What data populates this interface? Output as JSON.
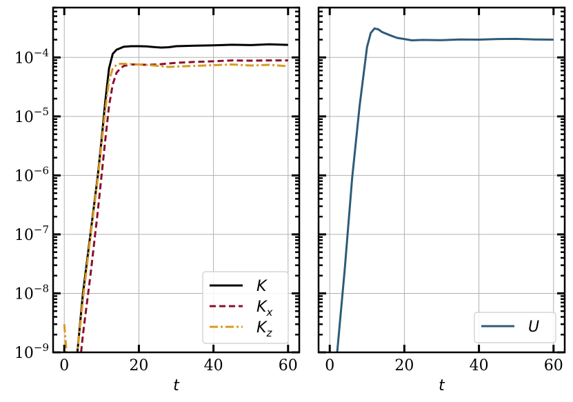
{
  "chart_data": [
    {
      "type": "line",
      "title": "",
      "xlabel": "t",
      "ylabel": "",
      "xlim": [
        -3,
        63
      ],
      "ylim": [
        1e-09,
        0.0007
      ],
      "yscale": "log",
      "grid": true,
      "legend_position": "bottom-right",
      "x_ticks": [
        0,
        20,
        40,
        60
      ],
      "x_tick_labels": [
        "0",
        "20",
        "40",
        "60"
      ],
      "y_ticks": [
        1e-09,
        1e-08,
        1e-07,
        1e-06,
        1e-05,
        0.0001
      ],
      "y_tick_labels": [
        {
          "base": "10",
          "exp": "−9"
        },
        {
          "base": "10",
          "exp": "−8"
        },
        {
          "base": "10",
          "exp": "−7"
        },
        {
          "base": "10",
          "exp": "−6"
        },
        {
          "base": "10",
          "exp": "−5"
        },
        {
          "base": "10",
          "exp": "−4"
        }
      ],
      "series": [
        {
          "name": "K",
          "name_sub": "",
          "color": "#000000",
          "dash": "solid",
          "x": [
            3.5,
            5,
            7,
            9,
            10,
            11,
            12,
            13,
            14,
            16,
            18,
            20,
            22,
            24,
            26,
            28,
            30,
            35,
            40,
            45,
            50,
            55,
            60
          ],
          "y": [
            1e-09,
            1e-08,
            1e-07,
            1e-06,
            4e-06,
            1.8e-05,
            6.5e-05,
            0.000115,
            0.000135,
            0.000152,
            0.000155,
            0.000155,
            0.000154,
            0.00015,
            0.000147,
            0.000149,
            0.000155,
            0.000158,
            0.00016,
            0.000164,
            0.000162,
            0.000167,
            0.000163
          ]
        },
        {
          "name": "K",
          "name_sub": "x",
          "color": "#8b0d2d",
          "dash": "dash",
          "x": [
            4.5,
            5,
            7,
            9,
            10,
            11,
            12,
            13,
            14,
            15,
            16,
            18,
            20,
            22,
            25,
            30,
            35,
            40,
            45,
            50,
            55,
            60
          ],
          "y": [
            1e-09,
            2e-09,
            2e-08,
            2.5e-07,
            1e-06,
            4e-06,
            1.5e-05,
            3.5e-05,
            5.5e-05,
            6.5e-05,
            7.2e-05,
            7.6e-05,
            7.6e-05,
            7.5e-05,
            7.6e-05,
            8.1e-05,
            8.4e-05,
            8.6e-05,
            8.9e-05,
            8.8e-05,
            8.9e-05,
            8.9e-05
          ]
        },
        {
          "name": "K",
          "name_sub": "z",
          "color": "#d99a1c",
          "dash": "dashdot",
          "x": [
            0,
            0.6,
            3.5,
            5,
            7,
            9,
            10,
            11,
            12,
            13,
            14,
            15,
            16,
            18,
            20,
            22,
            25,
            28,
            30,
            35,
            40,
            45,
            50,
            55,
            60
          ],
          "y": [
            3e-09,
            1e-09,
            1e-09,
            8e-09,
            9e-08,
            9e-07,
            3.5e-06,
            1.3e-05,
            4e-05,
            6.5e-05,
            7.5e-05,
            7.8e-05,
            7.8e-05,
            7.7e-05,
            7.6e-05,
            7.5e-05,
            7.2e-05,
            6.9e-05,
            7e-05,
            7.2e-05,
            7.4e-05,
            7.6e-05,
            7.3e-05,
            7.5e-05,
            7.1e-05
          ]
        }
      ]
    },
    {
      "type": "line",
      "title": "",
      "xlabel": "t",
      "ylabel": "",
      "xlim": [
        -3,
        63
      ],
      "ylim": [
        1e-09,
        0.0007
      ],
      "yscale": "log",
      "grid": true,
      "legend_position": "bottom-right",
      "x_ticks": [
        0,
        20,
        40,
        60
      ],
      "x_tick_labels": [
        "0",
        "20",
        "40",
        "60"
      ],
      "y_ticks": [
        1e-09,
        1e-08,
        1e-07,
        1e-06,
        1e-05,
        0.0001
      ],
      "series": [
        {
          "name": "U",
          "name_sub": "",
          "color": "#2d5b79",
          "dash": "solid",
          "x": [
            2,
            4,
            6,
            8,
            10,
            11,
            12,
            13,
            14,
            16,
            18,
            20,
            22,
            25,
            30,
            35,
            40,
            45,
            50,
            55,
            60
          ],
          "y": [
            1e-09,
            2.5e-08,
            9e-07,
            1.5e-05,
            0.00015,
            0.00026,
            0.00031,
            0.0003,
            0.00027,
            0.00024,
            0.000215,
            0.000205,
            0.000195,
            0.000198,
            0.000196,
            0.000202,
            0.0002,
            0.000205,
            0.000206,
            0.000202,
            0.0002
          ]
        }
      ]
    }
  ]
}
